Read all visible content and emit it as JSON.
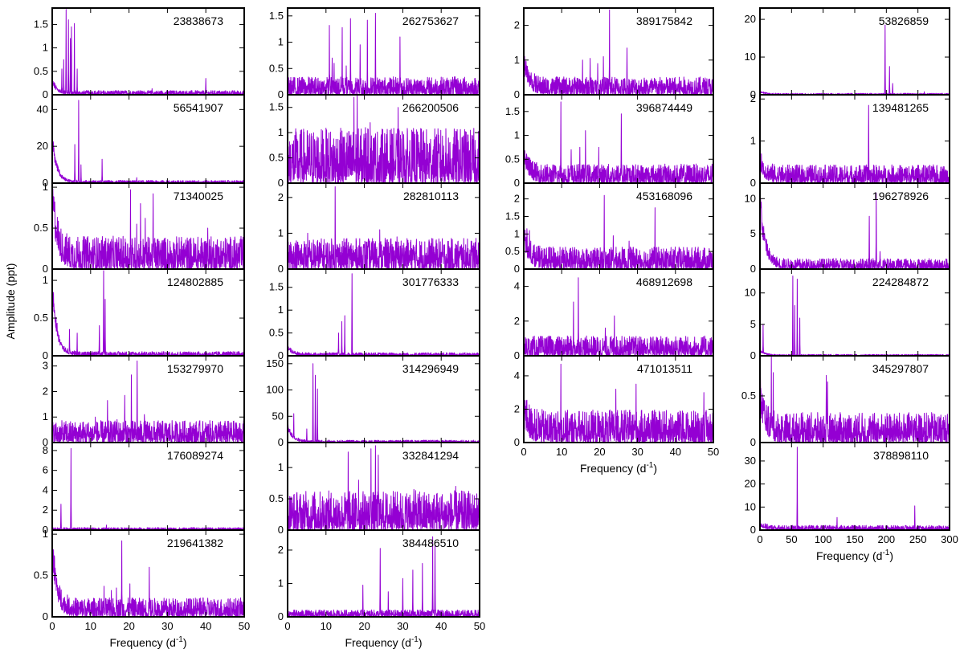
{
  "figure": {
    "ylabel": "Amplitude (ppt)",
    "xlabel_main": "Frequency (d",
    "xlabel_sup": "-1",
    "xlabel_close": ")"
  },
  "colors": {
    "line": "#9400D3",
    "frame": "#000000"
  },
  "chart_data": [
    {
      "type": "line",
      "label": "23838673",
      "xlim": [
        0,
        50
      ],
      "yticks": [
        0,
        0.5,
        1,
        1.5
      ],
      "ylim": [
        0,
        1.85
      ],
      "peaks": [
        [
          3.6,
          1.82
        ],
        [
          4.2,
          1.6
        ],
        [
          5.0,
          1.45
        ],
        [
          5.8,
          1.52
        ],
        [
          3.0,
          0.75
        ],
        [
          2.5,
          0.55
        ],
        [
          6.5,
          0.55
        ],
        [
          4.7,
          1.2
        ],
        [
          40,
          0.35
        ],
        [
          26,
          0.13
        ]
      ],
      "noise": 0.08,
      "lowfreq": 0.3
    },
    {
      "type": "line",
      "label": "56541907",
      "xlim": [
        0,
        50
      ],
      "yticks": [
        0,
        20,
        40
      ],
      "ylim": [
        0,
        48
      ],
      "peaks": [
        [
          6.9,
          45
        ],
        [
          5.9,
          21
        ],
        [
          13.0,
          13
        ],
        [
          7.5,
          10
        ],
        [
          22,
          3
        ]
      ],
      "noise": 1.3,
      "lowfreq": 28
    },
    {
      "type": "line",
      "label": "71340025",
      "xlim": [
        0,
        50
      ],
      "yticks": [
        0,
        0.5,
        1
      ],
      "ylim": [
        0,
        1.05
      ],
      "peaks": [
        [
          20.4,
          0.97
        ],
        [
          23.0,
          0.8
        ],
        [
          24.2,
          0.62
        ],
        [
          26.3,
          0.92
        ],
        [
          22.0,
          0.55
        ],
        [
          40.5,
          0.5
        ]
      ],
      "noise": 0.35,
      "lowfreq": 0.95
    },
    {
      "type": "line",
      "label": "124802885",
      "xlim": [
        0,
        50
      ],
      "yticks": [
        0,
        0.5,
        1
      ],
      "ylim": [
        0,
        1.15
      ],
      "peaks": [
        [
          13.4,
          1.13
        ],
        [
          12.3,
          0.4
        ],
        [
          13.8,
          0.75
        ],
        [
          4.5,
          0.35
        ],
        [
          6.5,
          0.3
        ]
      ],
      "noise": 0.05,
      "lowfreq": 1.1
    },
    {
      "type": "line",
      "label": "153279970",
      "xlim": [
        0,
        50
      ],
      "yticks": [
        0,
        1,
        2,
        3
      ],
      "ylim": [
        0,
        3.4
      ],
      "peaks": [
        [
          22.1,
          3.2
        ],
        [
          20.6,
          2.65
        ],
        [
          18.9,
          1.85
        ],
        [
          14.4,
          1.65
        ],
        [
          24.0,
          1.1
        ],
        [
          11.2,
          1.0
        ],
        [
          16.9,
          0.9
        ]
      ],
      "noise": 0.75,
      "lowfreq": 0
    },
    {
      "type": "line",
      "label": "176089274",
      "xlim": [
        0,
        50
      ],
      "yticks": [
        0,
        2,
        4,
        6,
        8
      ],
      "ylim": [
        0,
        8.8
      ],
      "peaks": [
        [
          4.9,
          8.2
        ],
        [
          2.3,
          2.6
        ],
        [
          14.1,
          0.5
        ]
      ],
      "noise": 0.22,
      "lowfreq": 0
    },
    {
      "type": "line",
      "label": "219641382",
      "xlim": [
        0,
        50
      ],
      "yticks": [
        0,
        0.5,
        1
      ],
      "ylim": [
        0,
        1.05
      ],
      "peaks": [
        [
          18.1,
          0.92
        ],
        [
          25.3,
          0.6
        ],
        [
          13.5,
          0.37
        ],
        [
          15.4,
          0.32
        ],
        [
          20.2,
          0.4
        ],
        [
          16.7,
          0.35
        ]
      ],
      "noise": 0.2,
      "lowfreq": 0.95
    },
    {
      "type": "line",
      "label": "262753627",
      "xlim": [
        0,
        50
      ],
      "yticks": [
        0,
        0.5,
        1,
        1.5
      ],
      "ylim": [
        0,
        1.65
      ],
      "peaks": [
        [
          10.9,
          1.32
        ],
        [
          14.2,
          1.28
        ],
        [
          16.4,
          1.45
        ],
        [
          20.8,
          1.42
        ],
        [
          22.9,
          1.55
        ],
        [
          29.3,
          1.1
        ],
        [
          18.9,
          0.95
        ],
        [
          12.1,
          0.6
        ],
        [
          15.3,
          0.55
        ],
        [
          11.6,
          0.7
        ]
      ],
      "noise": 0.3,
      "lowfreq": 0
    },
    {
      "type": "line",
      "label": "266200506",
      "xlim": [
        0,
        50
      ],
      "yticks": [
        0,
        0.5,
        1,
        1.5
      ],
      "ylim": [
        0,
        1.75
      ],
      "peaks": [
        [
          17.3,
          1.7
        ],
        [
          18.1,
          1.75
        ],
        [
          28.8,
          1.5
        ],
        [
          21.5,
          1.2
        ],
        [
          20.3,
          1.1
        ]
      ],
      "noise": 0.95,
      "lowfreq": 0
    },
    {
      "type": "line",
      "label": "282810113",
      "xlim": [
        0,
        50
      ],
      "yticks": [
        0,
        1,
        2
      ],
      "ylim": [
        0,
        2.4
      ],
      "peaks": [
        [
          12.4,
          2.3
        ],
        [
          24.0,
          1.1
        ],
        [
          28.5,
          0.9
        ],
        [
          5.2,
          1.0
        ]
      ],
      "noise": 0.75,
      "lowfreq": 0
    },
    {
      "type": "line",
      "label": "301776333",
      "xlim": [
        0,
        50
      ],
      "yticks": [
        0,
        0.5,
        1,
        1.5
      ],
      "ylim": [
        0,
        1.9
      ],
      "peaks": [
        [
          16.8,
          1.8
        ],
        [
          14.9,
          0.88
        ],
        [
          14.1,
          0.75
        ],
        [
          13.3,
          0.5
        ]
      ],
      "noise": 0.06,
      "lowfreq": 0.2
    },
    {
      "type": "line",
      "label": "314296949",
      "xlim": [
        0,
        50
      ],
      "yticks": [
        0,
        50,
        100,
        150
      ],
      "ylim": [
        0,
        165
      ],
      "peaks": [
        [
          6.6,
          150
        ],
        [
          7.2,
          128
        ],
        [
          7.8,
          102
        ],
        [
          1.6,
          55
        ],
        [
          5.0,
          26
        ]
      ],
      "noise": 4,
      "lowfreq": 38
    },
    {
      "type": "line",
      "label": "332841294",
      "xlim": [
        0,
        50
      ],
      "yticks": [
        0,
        0.5,
        1
      ],
      "ylim": [
        0,
        1.4
      ],
      "peaks": [
        [
          15.8,
          1.25
        ],
        [
          21.7,
          1.3
        ],
        [
          22.9,
          1.35
        ],
        [
          23.6,
          1.2
        ],
        [
          18.5,
          0.8
        ],
        [
          32.9,
          0.65
        ],
        [
          43.8,
          0.7
        ]
      ],
      "noise": 0.55,
      "lowfreq": 0
    },
    {
      "type": "line",
      "label": "384486510",
      "xlim": [
        0,
        50
      ],
      "yticks": [
        0,
        1,
        2
      ],
      "ylim": [
        0,
        2.6
      ],
      "peaks": [
        [
          24.1,
          2.05
        ],
        [
          37.8,
          2.4
        ],
        [
          38.4,
          2.2
        ],
        [
          35.1,
          1.6
        ],
        [
          32.6,
          1.4
        ],
        [
          30.0,
          1.15
        ],
        [
          19.6,
          0.95
        ],
        [
          26.2,
          0.75
        ]
      ],
      "noise": 0.18,
      "lowfreq": 0
    },
    {
      "type": "line",
      "label": "389175842",
      "xlim": [
        0,
        50
      ],
      "yticks": [
        0,
        1,
        2
      ],
      "ylim": [
        0,
        2.5
      ],
      "peaks": [
        [
          22.6,
          2.45
        ],
        [
          27.2,
          1.35
        ],
        [
          21.0,
          1.1
        ],
        [
          17.5,
          1.05
        ],
        [
          15.5,
          1.0
        ],
        [
          19.5,
          0.9
        ]
      ],
      "noise": 0.45,
      "lowfreq": 1.1
    },
    {
      "type": "line",
      "label": "396874449",
      "xlim": [
        0,
        50
      ],
      "yticks": [
        0,
        0.5,
        1,
        1.5
      ],
      "ylim": [
        0,
        1.85
      ],
      "peaks": [
        [
          9.8,
          1.7
        ],
        [
          25.7,
          1.45
        ],
        [
          16.3,
          1.1
        ],
        [
          14.8,
          0.75
        ],
        [
          19.8,
          0.75
        ],
        [
          12.5,
          0.7
        ]
      ],
      "noise": 0.35,
      "lowfreq": 0.6
    },
    {
      "type": "line",
      "label": "453168096",
      "xlim": [
        0,
        50
      ],
      "yticks": [
        0,
        0.5,
        1,
        1.5,
        2
      ],
      "ylim": [
        0,
        2.45
      ],
      "peaks": [
        [
          21.2,
          2.1
        ],
        [
          34.6,
          1.75
        ],
        [
          23.6,
          0.95
        ],
        [
          1.5,
          1.1
        ],
        [
          27.8,
          0.8
        ]
      ],
      "noise": 0.55,
      "lowfreq": 1.1
    },
    {
      "type": "line",
      "label": "468912698",
      "xlim": [
        0,
        50
      ],
      "yticks": [
        0,
        2,
        4
      ],
      "ylim": [
        0,
        5
      ],
      "peaks": [
        [
          14.4,
          4.5
        ],
        [
          13.1,
          3.1
        ],
        [
          23.9,
          2.3
        ],
        [
          21.5,
          1.6
        ]
      ],
      "noise": 1.0,
      "lowfreq": 0
    },
    {
      "type": "line",
      "label": "471013511",
      "xlim": [
        0,
        50
      ],
      "yticks": [
        0,
        2,
        4
      ],
      "ylim": [
        0,
        5.2
      ],
      "peaks": [
        [
          9.8,
          4.7
        ],
        [
          29.6,
          3.5
        ],
        [
          24.3,
          3.2
        ],
        [
          47.5,
          3.0
        ]
      ],
      "noise": 1.7,
      "lowfreq": 1.5
    },
    {
      "type": "line",
      "label": "53826859",
      "xlim": [
        0,
        300
      ],
      "yticks": [
        0,
        10,
        20
      ],
      "ylim": [
        0,
        23
      ],
      "peaks": [
        [
          198,
          18.5
        ],
        [
          205,
          7.5
        ],
        [
          210,
          3
        ],
        [
          260,
          0.8
        ]
      ],
      "noise": 0.35,
      "lowfreq": 1.0
    },
    {
      "type": "line",
      "label": "139481265",
      "xlim": [
        0,
        300
      ],
      "yticks": [
        0,
        1,
        2
      ],
      "ylim": [
        0,
        2.1
      ],
      "peaks": [
        [
          172,
          1.85
        ]
      ],
      "noise": 0.38,
      "lowfreq": 0.45
    },
    {
      "type": "line",
      "label": "196278926",
      "xlim": [
        0,
        300
      ],
      "yticks": [
        0,
        5,
        10
      ],
      "ylim": [
        0,
        12.2
      ],
      "peaks": [
        [
          184,
          10.8
        ],
        [
          173,
          7.5
        ],
        [
          190,
          2.5
        ]
      ],
      "noise": 1.3,
      "lowfreq": 12
    },
    {
      "type": "line",
      "label": "224284872",
      "xlim": [
        0,
        300
      ],
      "yticks": [
        0,
        5,
        10
      ],
      "ylim": [
        0,
        13.8
      ],
      "peaks": [
        [
          52,
          12.7
        ],
        [
          59,
          12.2
        ],
        [
          63,
          6
        ],
        [
          55,
          8
        ],
        [
          5,
          5
        ]
      ],
      "noise": 0.2,
      "lowfreq": 1.0
    },
    {
      "type": "line",
      "label": "345297807",
      "xlim": [
        0,
        300
      ],
      "yticks": [
        0,
        0.5
      ],
      "ylim": [
        0,
        0.93
      ],
      "peaks": [
        [
          18,
          0.93
        ],
        [
          21,
          0.75
        ],
        [
          105,
          0.72
        ],
        [
          107,
          0.65
        ]
      ],
      "noise": 0.28,
      "lowfreq": 0.55
    },
    {
      "type": "line",
      "label": "378898110",
      "xlim": [
        0,
        300
      ],
      "yticks": [
        0,
        10,
        20,
        30
      ],
      "ylim": [
        0,
        38
      ],
      "peaks": [
        [
          59,
          36
        ],
        [
          245,
          10.5
        ],
        [
          122,
          5.5
        ]
      ],
      "noise": 1.8,
      "lowfreq": 2.5
    }
  ]
}
